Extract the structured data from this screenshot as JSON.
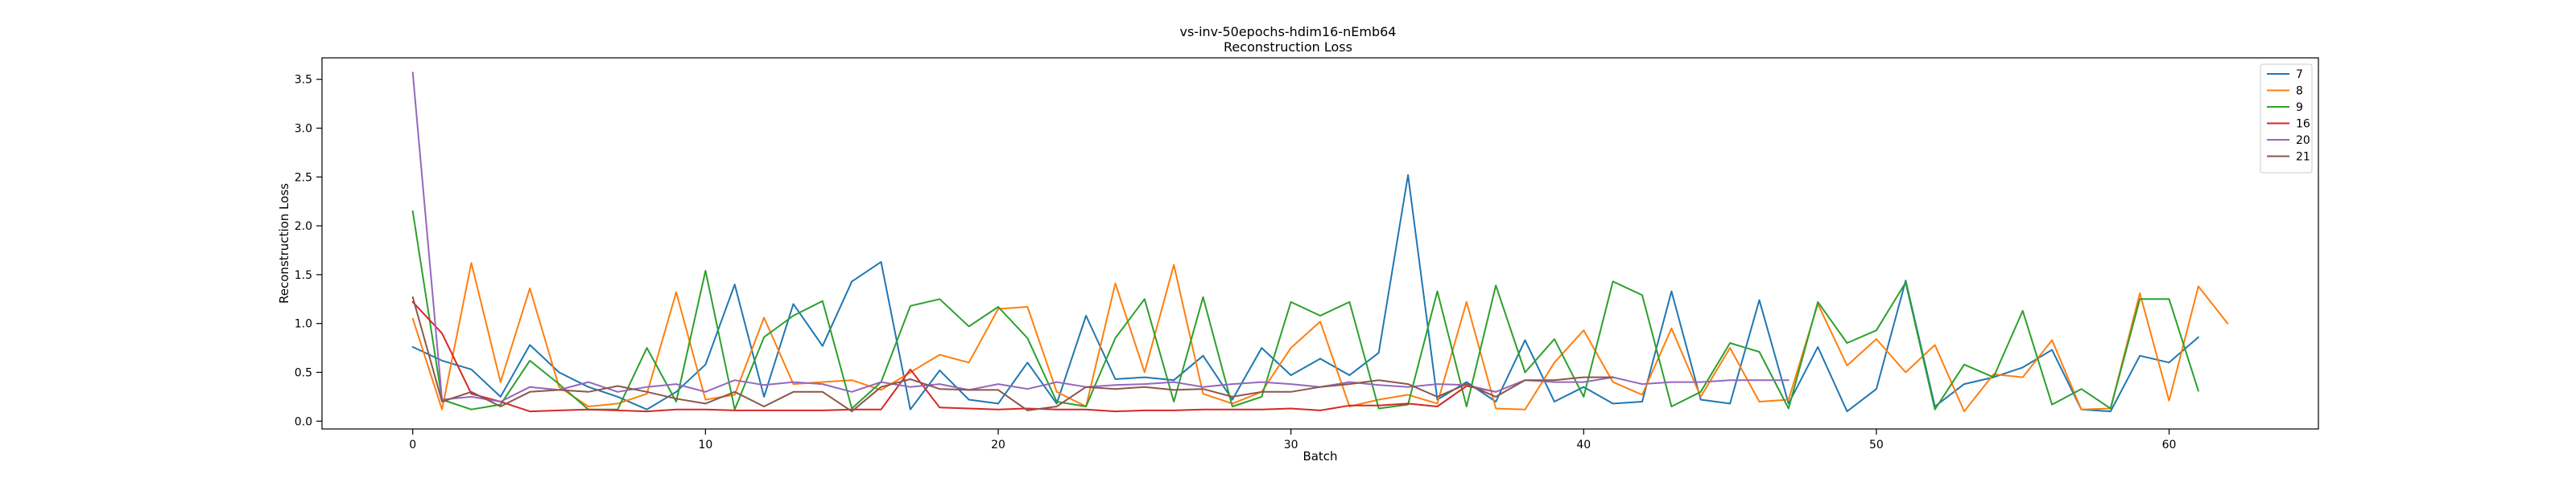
{
  "chart_data": {
    "type": "line",
    "title": "vs-inv-50epochs-hdim16-nEmb64",
    "subtitle": "Reconstruction Loss",
    "xlabel": "Batch",
    "ylabel": "Reconstruction Loss",
    "xlim": [
      -3.1,
      65.1
    ],
    "ylim": [
      -0.08,
      3.72
    ],
    "xticks": [
      0,
      10,
      20,
      30,
      40,
      50,
      60
    ],
    "yticks": [
      0.0,
      0.5,
      1.0,
      1.5,
      2.0,
      2.5,
      3.0,
      3.5
    ],
    "ytick_labels": [
      "0.0",
      "0.5",
      "1.0",
      "1.5",
      "2.0",
      "2.5",
      "3.0",
      "3.5"
    ],
    "grid": false,
    "legend_position": "top-right",
    "series": [
      {
        "name": "7",
        "color": "#1f77b4",
        "values": [
          0.76,
          0.62,
          0.53,
          0.25,
          0.78,
          0.5,
          0.35,
          0.25,
          0.12,
          0.3,
          0.58,
          1.4,
          0.25,
          1.2,
          0.77,
          1.43,
          1.63,
          0.12,
          0.52,
          0.22,
          0.18,
          0.6,
          0.18,
          1.08,
          0.43,
          0.45,
          0.42,
          0.67,
          0.22,
          0.75,
          0.47,
          0.64,
          0.47,
          0.7,
          2.52,
          0.22,
          0.4,
          0.2,
          0.83,
          0.2,
          0.35,
          0.18,
          0.2,
          1.33,
          0.22,
          0.18,
          1.24,
          0.18,
          0.76,
          0.1,
          0.33,
          1.44,
          0.15,
          0.38,
          0.45,
          0.55,
          0.73,
          0.12,
          0.1,
          0.67,
          0.6,
          0.86
        ]
      },
      {
        "name": "8",
        "color": "#ff7f0e",
        "values": [
          1.05,
          0.12,
          1.62,
          0.4,
          1.36,
          0.35,
          0.15,
          0.18,
          0.28,
          1.32,
          0.22,
          0.27,
          1.06,
          0.38,
          0.4,
          0.42,
          0.32,
          0.5,
          0.68,
          0.6,
          1.15,
          1.17,
          0.3,
          0.15,
          1.41,
          0.5,
          1.6,
          0.28,
          0.18,
          0.3,
          0.75,
          1.02,
          0.15,
          0.22,
          0.27,
          0.18,
          1.22,
          0.13,
          0.12,
          0.6,
          0.93,
          0.4,
          0.27,
          0.95,
          0.25,
          0.75,
          0.2,
          0.22,
          1.2,
          0.57,
          0.84,
          0.5,
          0.78,
          0.1,
          0.48,
          0.45,
          0.83,
          0.12,
          0.13,
          1.31,
          0.21,
          1.38,
          1.0
        ]
      },
      {
        "name": "9",
        "color": "#2ca02c",
        "values": [
          2.15,
          0.22,
          0.12,
          0.17,
          0.62,
          0.38,
          0.12,
          0.12,
          0.75,
          0.2,
          1.54,
          0.12,
          0.86,
          1.08,
          1.23,
          0.13,
          0.4,
          1.18,
          1.25,
          0.97,
          1.17,
          0.85,
          0.2,
          0.15,
          0.85,
          1.25,
          0.2,
          1.27,
          0.15,
          0.25,
          1.22,
          1.08,
          1.22,
          0.13,
          0.17,
          1.33,
          0.15,
          1.39,
          0.5,
          0.84,
          0.25,
          1.43,
          1.29,
          0.15,
          0.3,
          0.8,
          0.71,
          0.13,
          1.22,
          0.8,
          0.93,
          1.42,
          0.12,
          0.58,
          0.45,
          1.13,
          0.17,
          0.33,
          0.13,
          1.25,
          1.25,
          0.31
        ]
      },
      {
        "name": "16",
        "color": "#d62728",
        "values": [
          1.22,
          0.9,
          0.28,
          0.2,
          0.1,
          0.11,
          0.12,
          0.11,
          0.1,
          0.12,
          0.12,
          0.11,
          0.11,
          0.11,
          0.11,
          0.12,
          0.12,
          0.53,
          0.14,
          0.13,
          0.12,
          0.13,
          0.12,
          0.12,
          0.1,
          0.11,
          0.11,
          0.12,
          0.12,
          0.12,
          0.13,
          0.11,
          0.16,
          0.16,
          0.18,
          0.15,
          0.36,
          0.3
        ]
      },
      {
        "name": "20",
        "color": "#9467bd",
        "values": [
          3.57,
          0.22,
          0.25,
          0.2,
          0.35,
          0.32,
          0.4,
          0.3,
          0.35,
          0.38,
          0.3,
          0.42,
          0.37,
          0.4,
          0.38,
          0.3,
          0.4,
          0.35,
          0.38,
          0.32,
          0.38,
          0.33,
          0.4,
          0.35,
          0.37,
          0.38,
          0.4,
          0.35,
          0.38,
          0.4,
          0.38,
          0.35,
          0.4,
          0.37,
          0.35,
          0.38,
          0.37,
          0.3,
          0.42,
          0.4,
          0.4,
          0.45,
          0.38,
          0.4,
          0.4,
          0.42,
          0.42,
          0.42
        ]
      },
      {
        "name": "21",
        "color": "#8c564b",
        "values": [
          1.27,
          0.2,
          0.3,
          0.15,
          0.3,
          0.32,
          0.3,
          0.36,
          0.3,
          0.23,
          0.18,
          0.3,
          0.15,
          0.3,
          0.3,
          0.1,
          0.35,
          0.43,
          0.33,
          0.32,
          0.32,
          0.11,
          0.15,
          0.35,
          0.33,
          0.35,
          0.32,
          0.33,
          0.25,
          0.3,
          0.3,
          0.35,
          0.38,
          0.42,
          0.38,
          0.25,
          0.38,
          0.25,
          0.42,
          0.42,
          0.45,
          0.45
        ]
      }
    ]
  }
}
